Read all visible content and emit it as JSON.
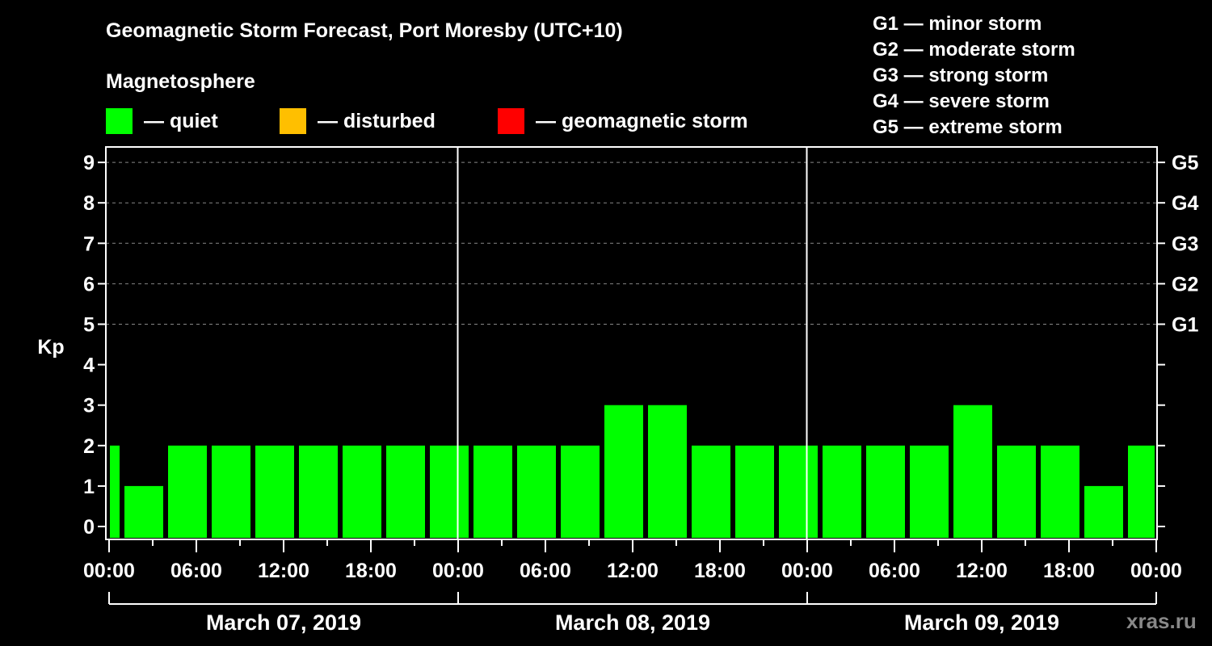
{
  "title": "Geomagnetic Storm Forecast, Port Moresby (UTC+10)",
  "subtitle": "Magnetosphere",
  "legend": [
    {
      "label": "— quiet",
      "color": "#00ff00"
    },
    {
      "label": "— disturbed",
      "color": "#ffbf00"
    },
    {
      "label": "— geomagnetic storm",
      "color": "#ff0000"
    }
  ],
  "g_scale": [
    "G1 — minor storm",
    "G2 — moderate storm",
    "G3 — strong storm",
    "G4 — severe storm",
    "G5 — extreme storm"
  ],
  "watermark": "xras.ru",
  "chart_data": {
    "type": "bar",
    "title": "Geomagnetic Storm Forecast, Port Moresby (UTC+10)",
    "xlabel": "",
    "ylabel": "Kp",
    "ylim": [
      0,
      9
    ],
    "yticks": [
      0,
      1,
      2,
      3,
      4,
      5,
      6,
      7,
      8,
      9
    ],
    "right_axis_labels": {
      "5": "G1",
      "6": "G2",
      "7": "G3",
      "8": "G4",
      "9": "G5"
    },
    "grid": "dashed horizontal at Kp 5-9",
    "xtick_labels": [
      "00:00",
      "06:00",
      "12:00",
      "18:00",
      "00:00",
      "06:00",
      "12:00",
      "18:00",
      "00:00",
      "06:00",
      "12:00",
      "18:00",
      "00:00"
    ],
    "days": [
      "March 07, 2019",
      "March 08, 2019",
      "March 09, 2019"
    ],
    "bar_bins_local_start_hour": [
      -2,
      1,
      4,
      7,
      10,
      13,
      16,
      19,
      22,
      25,
      28,
      31,
      34,
      37,
      40,
      43,
      46,
      49,
      52,
      55,
      58,
      61,
      64,
      67,
      70
    ],
    "values": [
      2,
      1,
      2,
      2,
      2,
      2,
      2,
      2,
      2,
      2,
      2,
      2,
      3,
      3,
      2,
      2,
      2,
      2,
      2,
      2,
      3,
      2,
      2,
      1,
      2
    ],
    "color": "#00ff00"
  }
}
